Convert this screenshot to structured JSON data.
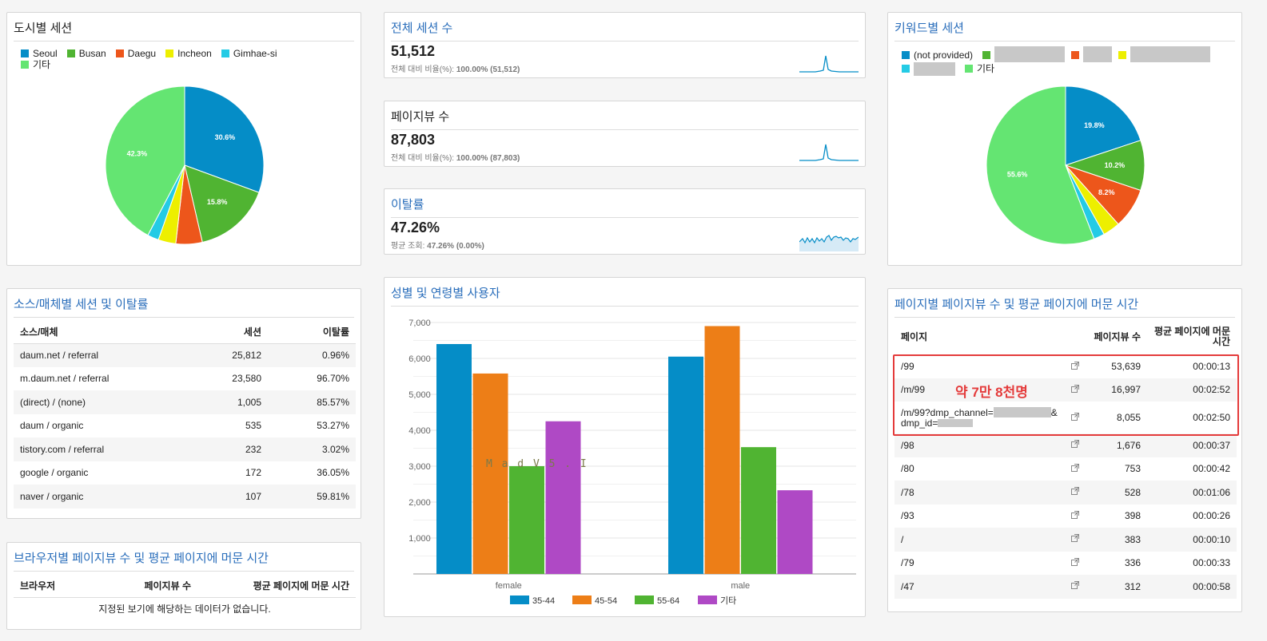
{
  "city_card": {
    "title": "도시별 세션",
    "legend": [
      {
        "label": "Seoul",
        "color": "#058dc7"
      },
      {
        "label": "Busan",
        "color": "#50b432"
      },
      {
        "label": "Daegu",
        "color": "#ed561b"
      },
      {
        "label": "Incheon",
        "color": "#edef00"
      },
      {
        "label": "Gimhae-si",
        "color": "#24cbe5"
      },
      {
        "label": "기타",
        "color": "#64e572"
      }
    ],
    "chart_data": {
      "type": "pie",
      "labels": [
        "Seoul",
        "Busan",
        "Daegu",
        "Incheon",
        "Gimhae-si",
        "기타"
      ],
      "values": [
        30.6,
        15.8,
        5.4,
        3.6,
        2.3,
        42.3
      ],
      "slice_labels": [
        "30.6%",
        "15.8%",
        "",
        "",
        "",
        "42.3%"
      ]
    }
  },
  "sessions_card": {
    "title": "전체 세션 수",
    "value": "51,512",
    "sub_label": "전체 대비 비율(%):",
    "sub_value": "100.00% (51,512)"
  },
  "pageviews_card": {
    "title": "페이지뷰 수",
    "value": "87,803",
    "sub_label": "전체 대비 비율(%):",
    "sub_value": "100.00% (87,803)"
  },
  "bounce_card": {
    "title": "이탈률",
    "value": "47.26%",
    "sub_label": "평균 조회:",
    "sub_value": "47.26% (0.00%)"
  },
  "keyword_card": {
    "title": "키워드별 세션",
    "legend": [
      {
        "label": "(not provided)",
        "color": "#058dc7"
      },
      {
        "label": "",
        "color": "#50b432"
      },
      {
        "label": "",
        "color": "#ed561b"
      },
      {
        "label": "",
        "color": "#edef00"
      },
      {
        "label": "",
        "color": "#24cbe5"
      },
      {
        "label": "기타",
        "color": "#64e572"
      }
    ],
    "chart_data": {
      "type": "pie",
      "labels": [
        "(not provided)",
        "",
        "",
        "",
        "",
        "기타"
      ],
      "values": [
        19.8,
        10.2,
        8.2,
        3.5,
        2.2,
        55.6
      ],
      "slice_labels": [
        "19.8%",
        "10.2%",
        "8.2%",
        "",
        "",
        "55.6%"
      ]
    }
  },
  "source_card": {
    "title": "소스/매체별 세션 및 이탈률",
    "headers": [
      "소스/매체",
      "세션",
      "이탈률"
    ],
    "rows": [
      [
        "daum.net / referral",
        "25,812",
        "0.96%"
      ],
      [
        "m.daum.net / referral",
        "23,580",
        "96.70%"
      ],
      [
        "(direct) / (none)",
        "1,005",
        "85.57%"
      ],
      [
        "daum / organic",
        "535",
        "53.27%"
      ],
      [
        "tistory.com / referral",
        "232",
        "3.02%"
      ],
      [
        "google / organic",
        "172",
        "36.05%"
      ],
      [
        "naver / organic",
        "107",
        "59.81%"
      ]
    ]
  },
  "browser_card": {
    "title": "브라우저별 페이지뷰 수 및 평균 페이지에 머문 시간",
    "headers": [
      "브라우저",
      "페이지뷰 수",
      "평균 페이지에 머문 시간"
    ],
    "empty_text": "지정된 보기에 해당하는 데이터가 없습니다."
  },
  "gender_card": {
    "title": "성별 및 연령별 사용자",
    "watermark": "M a d V 5 . I",
    "chart_data": {
      "type": "bar",
      "categories": [
        "female",
        "male"
      ],
      "series": [
        {
          "name": "35-44",
          "color": "#058dc7",
          "values": [
            6400,
            6050
          ]
        },
        {
          "name": "45-54",
          "color": "#ed7e17",
          "values": [
            5580,
            6900
          ]
        },
        {
          "name": "55-64",
          "color": "#50b432",
          "values": [
            3000,
            3530
          ]
        },
        {
          "name": "기타",
          "color": "#af49c5",
          "values": [
            4250,
            2330
          ]
        }
      ],
      "yticks": [
        "1,000",
        "2,000",
        "3,000",
        "4,000",
        "5,000",
        "6,000",
        "7,000"
      ],
      "ylim": [
        0,
        7000
      ]
    }
  },
  "page_card": {
    "title": "페이지별 페이지뷰 수 및 평균 페이지에 머문 시간",
    "headers": [
      "페이지",
      "페이지뷰 수",
      "평균 페이지에 머문 시간"
    ],
    "rows": [
      {
        "page": "/99",
        "views": "53,639",
        "time": "00:00:13"
      },
      {
        "page": "/m/99",
        "views": "16,997",
        "time": "00:02:52"
      },
      {
        "page": "/m/99?dmp_channel=",
        "page_suffix": "&",
        "page2": "dmp_id=",
        "views": "8,055",
        "time": "00:02:50"
      },
      {
        "page": "/98",
        "views": "1,676",
        "time": "00:00:37"
      },
      {
        "page": "/80",
        "views": "753",
        "time": "00:00:42"
      },
      {
        "page": "/78",
        "views": "528",
        "time": "00:01:06"
      },
      {
        "page": "/93",
        "views": "398",
        "time": "00:00:26"
      },
      {
        "page": "/",
        "views": "383",
        "time": "00:00:10"
      },
      {
        "page": "/79",
        "views": "336",
        "time": "00:00:33"
      },
      {
        "page": "/47",
        "views": "312",
        "time": "00:00:58"
      }
    ],
    "annotation": "약 7만 8천명"
  }
}
